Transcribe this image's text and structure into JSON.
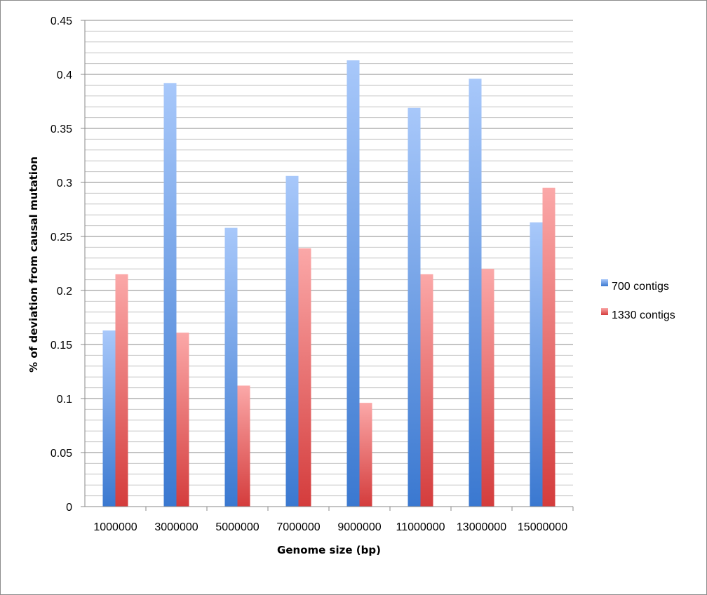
{
  "chart_data": {
    "type": "bar",
    "title": "",
    "xlabel": "Genome size (bp)",
    "ylabel": "% of deviation from causal mutation",
    "categories": [
      "1000000",
      "3000000",
      "5000000",
      "7000000",
      "9000000",
      "11000000",
      "13000000",
      "15000000"
    ],
    "series": [
      {
        "name": "700 contigs",
        "color": "#4a86d4",
        "values": [
          0.163,
          0.392,
          0.258,
          0.306,
          0.413,
          0.369,
          0.396,
          0.263
        ]
      },
      {
        "name": "1330 contigs",
        "color": "#e05555",
        "values": [
          0.215,
          0.161,
          0.112,
          0.239,
          0.096,
          0.215,
          0.22,
          0.295
        ]
      }
    ],
    "ylim": [
      0,
      0.45
    ],
    "y_ticks": [
      "0",
      "0.05",
      "0.1",
      "0.15",
      "0.2",
      "0.25",
      "0.3",
      "0.35",
      "0.4",
      "0.45"
    ],
    "minor_step": 0.01,
    "grid": true,
    "legend_position": "right"
  }
}
